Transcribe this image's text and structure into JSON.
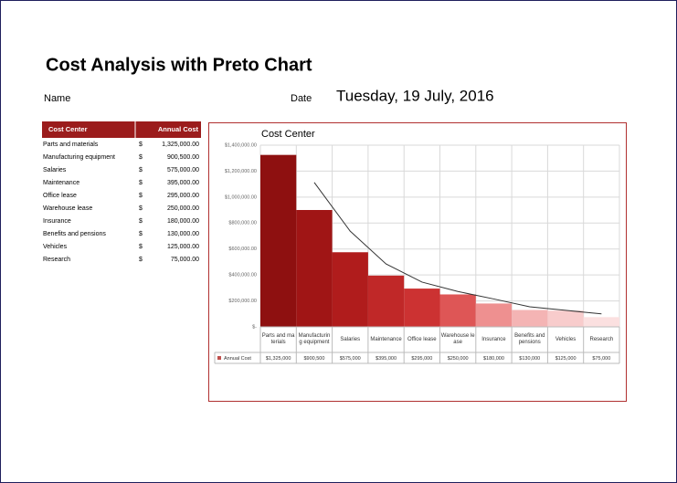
{
  "header": {
    "title": "Cost Analysis with Preto Chart",
    "name_label": "Name",
    "date_label": "Date",
    "date_value": "Tuesday, 19 July, 2016"
  },
  "table": {
    "headers": [
      "Cost Center",
      "Annual Cost"
    ],
    "rows": [
      [
        "Parts and materials",
        "$",
        "1,325,000.00"
      ],
      [
        "Manufacturing equipment",
        "$",
        "900,500.00"
      ],
      [
        "Salaries",
        "$",
        "575,000.00"
      ],
      [
        "Maintenance",
        "$",
        "395,000.00"
      ],
      [
        "Office lease",
        "$",
        "295,000.00"
      ],
      [
        "Warehouse lease",
        "$",
        "250,000.00"
      ],
      [
        "Insurance",
        "$",
        "180,000.00"
      ],
      [
        "Benefits and pensions",
        "$",
        "130,000.00"
      ],
      [
        "Vehicles",
        "$",
        "125,000.00"
      ],
      [
        "Research",
        "$",
        "75,000.00"
      ]
    ]
  },
  "chart_data": {
    "type": "bar",
    "title": "Cost Center",
    "categories": [
      "Parts and materials",
      "Manufacturing equipment",
      "Salaries",
      "Maintenance",
      "Office lease",
      "Warehouse lease",
      "Insurance",
      "Benefits and pensions",
      "Vehicles",
      "Research"
    ],
    "series": [
      {
        "name": "Annual Cost",
        "color": "#c0504d",
        "colors": [
          "#8e1010",
          "#a01515",
          "#b01c1c",
          "#c02828",
          "#cc3232",
          "#de5656",
          "#ee9090",
          "#f4b4b4",
          "#f8cccc",
          "#fbe0e0"
        ],
        "values": [
          1325000,
          900500,
          575000,
          395000,
          295000,
          250000,
          180000,
          130000,
          125000,
          75000
        ],
        "value_labels": [
          "$1,325,000",
          "$900,500",
          "$575,000",
          "$395,000",
          "$295,000",
          "$250,000",
          "$180,000",
          "$130,000",
          "$125,000",
          "$75,000"
        ]
      }
    ],
    "trendline": {
      "type": "line",
      "color": "#333333",
      "values": [
        null,
        1112750,
        737750,
        485000,
        345000,
        272500,
        215000,
        155000,
        127500,
        100000
      ]
    },
    "ylim": [
      0,
      1400000
    ],
    "yticks": [
      {
        "value": 0,
        "label": "$-"
      },
      {
        "value": 200000,
        "label": "$200,000.00"
      },
      {
        "value": 400000,
        "label": "$400,000.00"
      },
      {
        "value": 600000,
        "label": "$600,000.00"
      },
      {
        "value": 800000,
        "label": "$800,000.00"
      },
      {
        "value": 1000000,
        "label": "$1,000,000.00"
      },
      {
        "value": 1200000,
        "label": "$1,200,000.00"
      },
      {
        "value": 1400000,
        "label": "$1,400,000.00"
      }
    ],
    "grid": true
  }
}
